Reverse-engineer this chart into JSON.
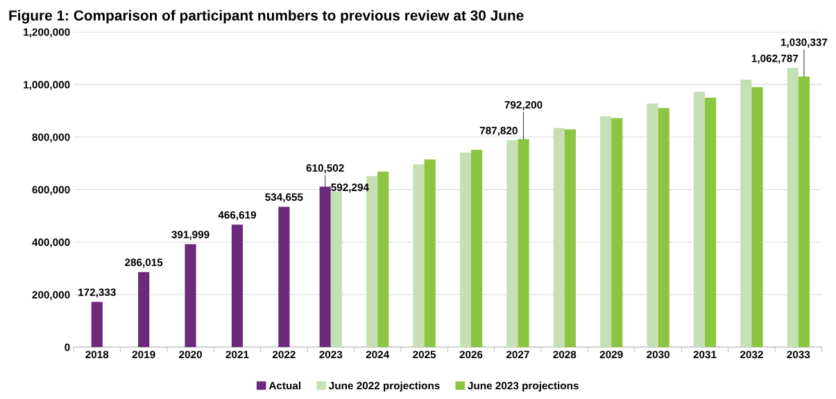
{
  "chart_data": {
    "type": "bar",
    "title": "Figure 1: Comparison of participant numbers to previous review at 30 June",
    "categories": [
      "2018",
      "2019",
      "2020",
      "2021",
      "2022",
      "2023",
      "2024",
      "2025",
      "2026",
      "2027",
      "2028",
      "2029",
      "2030",
      "2031",
      "2032",
      "2033"
    ],
    "series": [
      {
        "name": "Actual",
        "color": "#6c2a7a",
        "values": [
          172333,
          286015,
          391999,
          466619,
          534655,
          610502,
          null,
          null,
          null,
          null,
          null,
          null,
          null,
          null,
          null,
          null
        ],
        "value_labels": [
          "172,333",
          "286,015",
          "391,999",
          "466,619",
          "534,655",
          "610,502",
          null,
          null,
          null,
          null,
          null,
          null,
          null,
          null,
          null,
          null
        ]
      },
      {
        "name": "June 2022 projections",
        "color": "#c5e0b4",
        "values": [
          null,
          null,
          null,
          null,
          null,
          592294,
          651000,
          696000,
          741000,
          787820,
          834000,
          879000,
          927000,
          972000,
          1018000,
          1062787
        ],
        "value_labels": [
          null,
          null,
          null,
          null,
          null,
          "592,294",
          null,
          null,
          null,
          "787,820",
          null,
          null,
          null,
          null,
          null,
          "1,062,787"
        ]
      },
      {
        "name": "June 2023 projections",
        "color": "#8bc541",
        "values": [
          null,
          null,
          null,
          null,
          null,
          null,
          668000,
          714000,
          751000,
          792200,
          829000,
          872000,
          910000,
          950000,
          990000,
          1030337
        ],
        "value_labels": [
          null,
          null,
          null,
          null,
          null,
          null,
          null,
          null,
          null,
          "792,200",
          null,
          null,
          null,
          null,
          null,
          "1,030,337"
        ]
      }
    ],
    "ylim": [
      0,
      1200000
    ],
    "yticks": [
      {
        "value": 0,
        "label": "0"
      },
      {
        "value": 200000,
        "label": "200,000"
      },
      {
        "value": 400000,
        "label": "400,000"
      },
      {
        "value": 600000,
        "label": "600,000"
      },
      {
        "value": 800000,
        "label": "800,000"
      },
      {
        "value": 1000000,
        "label": "1,000,000"
      },
      {
        "value": 1200000,
        "label": "1,200,000"
      }
    ],
    "grid": "y",
    "legend": "bottom"
  }
}
